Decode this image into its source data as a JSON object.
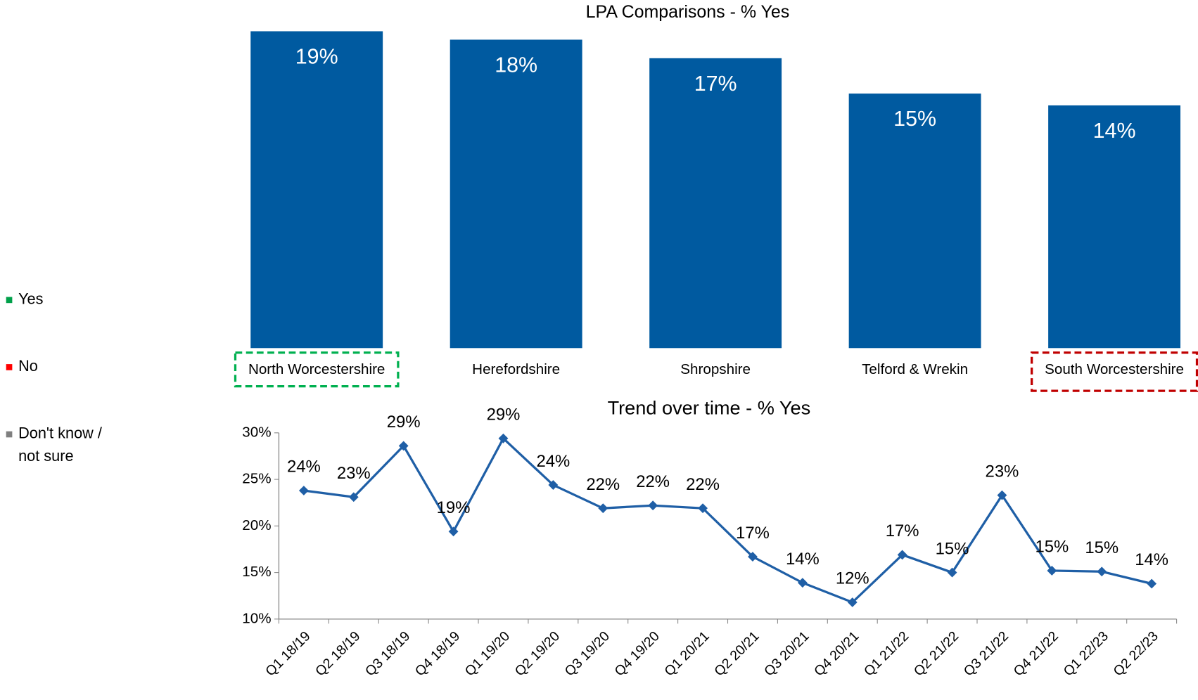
{
  "legend": [
    {
      "name": "Yes",
      "color": "#00a04a"
    },
    {
      "name": "No",
      "color": "#ff0000"
    },
    {
      "name": "Don't know / not sure",
      "color": "#7f7f7f"
    }
  ],
  "chart_data": [
    {
      "type": "bar",
      "title": "LPA Comparisons - % Yes",
      "categories": [
        "North Worcestershire",
        "Herefordshire",
        "Shropshire",
        "Telford & Wrekin",
        "South Worcestershire"
      ],
      "values": [
        18.8,
        18.3,
        17.2,
        15.1,
        14.4
      ],
      "value_labels": [
        "19%",
        "18%",
        "17%",
        "15%",
        "14%"
      ],
      "color": "#005aa0",
      "ylim": [
        0,
        19
      ],
      "category_borders": [
        "#00b050",
        null,
        null,
        null,
        "#c00000"
      ]
    },
    {
      "type": "line",
      "title": "Trend over time - % Yes",
      "categories": [
        "Q1 18/19",
        "Q2 18/19",
        "Q3 18/19",
        "Q4 18/19",
        "Q1 19/20",
        "Q2 19/20",
        "Q3 19/20",
        "Q4 19/20",
        "Q1 20/21",
        "Q2 20/21",
        "Q3 20/21",
        "Q4 20/21",
        "Q1 21/22",
        "Q2 21/22",
        "Q3 21/22",
        "Q4 21/22",
        "Q1 22/23",
        "Q2 22/23"
      ],
      "values": [
        23.8,
        23.1,
        28.6,
        19.4,
        29.4,
        24.4,
        21.9,
        22.2,
        21.9,
        16.7,
        13.9,
        11.8,
        16.9,
        15.0,
        23.3,
        15.2,
        15.1,
        13.8
      ],
      "value_labels": [
        "24%",
        "23%",
        "29%",
        "19%",
        "29%",
        "24%",
        "22%",
        "22%",
        "22%",
        "17%",
        "14%",
        "12%",
        "17%",
        "15%",
        "23%",
        "15%",
        "15%",
        "14%"
      ],
      "color": "#1f5fa6",
      "ylim": [
        10,
        30
      ],
      "yticks": [
        {
          "value": 10,
          "label": "10%"
        },
        {
          "value": 15,
          "label": "15%"
        },
        {
          "value": 20,
          "label": "20%"
        },
        {
          "value": 25,
          "label": "25%"
        },
        {
          "value": 30,
          "label": "30%"
        }
      ]
    }
  ]
}
